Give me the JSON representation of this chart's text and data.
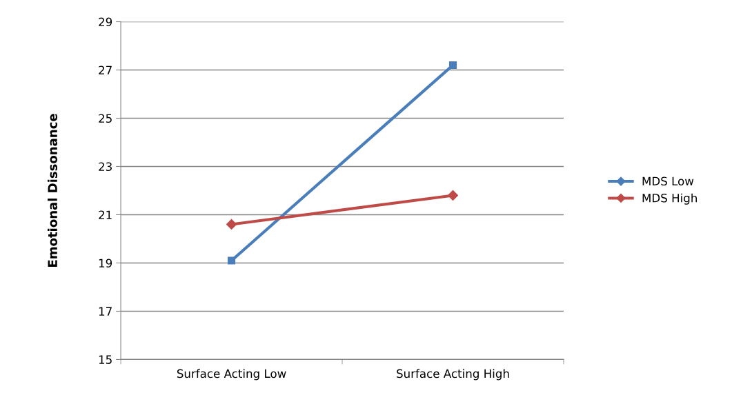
{
  "chart_data": {
    "type": "line",
    "ylabel": "Emotional Dissonance",
    "categories": [
      "Surface Acting Low",
      "Surface Acting High"
    ],
    "series": [
      {
        "name": "MDS Low",
        "color": "#4a7ebb",
        "values": [
          19.1,
          27.2
        ],
        "marker": "square"
      },
      {
        "name": "MDS High",
        "color": "#be4b48",
        "values": [
          20.6,
          21.8
        ],
        "marker": "diamond"
      }
    ],
    "ylim": [
      15,
      29
    ],
    "yticks": [
      15,
      17,
      19,
      21,
      23,
      25,
      27,
      29
    ],
    "grid": "y",
    "legend": "right",
    "line_style": "solid"
  }
}
